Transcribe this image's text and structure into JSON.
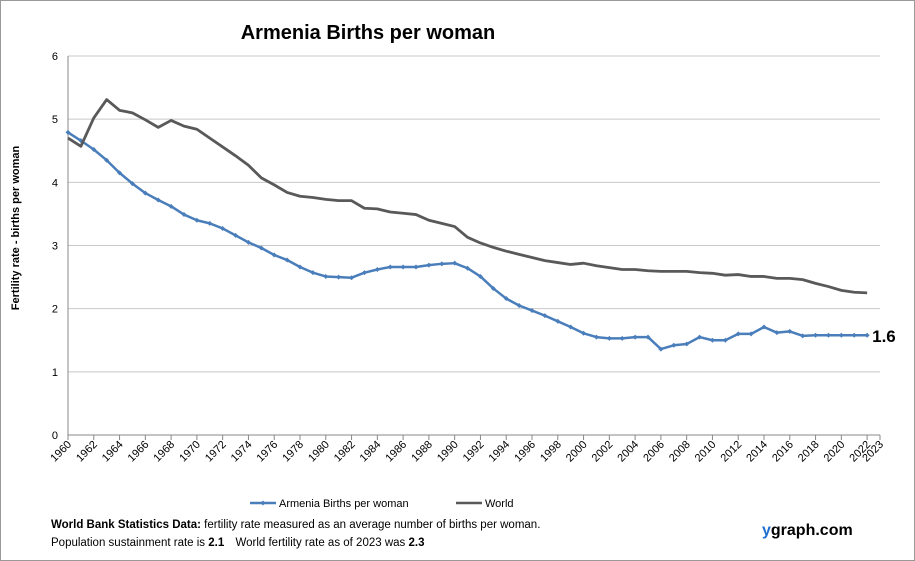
{
  "chart_data": {
    "type": "line",
    "title": "Armenia Births per woman",
    "y_label": "Fertility rate  - births per woman",
    "x": [
      1960,
      1961,
      1962,
      1963,
      1964,
      1965,
      1966,
      1967,
      1968,
      1969,
      1970,
      1971,
      1972,
      1973,
      1974,
      1975,
      1976,
      1977,
      1978,
      1979,
      1980,
      1981,
      1982,
      1983,
      1984,
      1985,
      1986,
      1987,
      1988,
      1989,
      1990,
      1991,
      1992,
      1993,
      1994,
      1995,
      1996,
      1997,
      1998,
      1999,
      2000,
      2001,
      2002,
      2003,
      2004,
      2005,
      2006,
      2007,
      2008,
      2009,
      2010,
      2011,
      2012,
      2013,
      2014,
      2015,
      2016,
      2017,
      2018,
      2019,
      2020,
      2021,
      2022
    ],
    "series": [
      {
        "name": "Armenia Births per woman",
        "color": "#4a7ebb",
        "markers": true,
        "values": [
          4.79,
          4.66,
          4.52,
          4.35,
          4.15,
          3.98,
          3.83,
          3.72,
          3.62,
          3.49,
          3.4,
          3.35,
          3.27,
          3.16,
          3.05,
          2.96,
          2.85,
          2.77,
          2.66,
          2.57,
          2.51,
          2.5,
          2.49,
          2.57,
          2.62,
          2.66,
          2.66,
          2.66,
          2.69,
          2.71,
          2.72,
          2.64,
          2.51,
          2.32,
          2.16,
          2.05,
          1.97,
          1.89,
          1.8,
          1.71,
          1.61,
          1.55,
          1.53,
          1.53,
          1.55,
          1.55,
          1.36,
          1.42,
          1.44,
          1.55,
          1.5,
          1.5,
          1.6,
          1.6,
          1.71,
          1.62,
          1.64,
          1.57,
          1.58,
          1.58,
          1.58,
          1.58,
          1.58
        ]
      },
      {
        "name": "World",
        "color": "#595959",
        "markers": false,
        "values": [
          4.7,
          4.57,
          5.02,
          5.31,
          5.14,
          5.1,
          4.99,
          4.87,
          4.98,
          4.89,
          4.84,
          4.7,
          4.56,
          4.42,
          4.27,
          4.07,
          3.96,
          3.84,
          3.78,
          3.76,
          3.73,
          3.71,
          3.71,
          3.59,
          3.58,
          3.53,
          3.51,
          3.49,
          3.4,
          3.35,
          3.3,
          3.13,
          3.04,
          2.97,
          2.91,
          2.86,
          2.81,
          2.76,
          2.73,
          2.7,
          2.72,
          2.68,
          2.65,
          2.62,
          2.62,
          2.6,
          2.59,
          2.59,
          2.59,
          2.57,
          2.56,
          2.53,
          2.54,
          2.51,
          2.51,
          2.48,
          2.48,
          2.46,
          2.4,
          2.35,
          2.29,
          2.26,
          2.25
        ]
      }
    ],
    "end_label": "1.6",
    "xlim": [
      1960,
      2023
    ],
    "xticks": [
      1960,
      1962,
      1964,
      1966,
      1968,
      1970,
      1972,
      1974,
      1976,
      1978,
      1980,
      1982,
      1984,
      1986,
      1988,
      1990,
      1992,
      1994,
      1996,
      1998,
      2000,
      2002,
      2004,
      2006,
      2008,
      2010,
      2012,
      2014,
      2016,
      2018,
      2020,
      2022,
      2023
    ],
    "ylim": [
      0,
      6
    ],
    "yticks": [
      0,
      1,
      2,
      3,
      4,
      5,
      6
    ],
    "grid": true,
    "legend": "bottom"
  },
  "footer": {
    "line1_bold": "World Bank Statistics Data:",
    "line1": "fertility rate measured as an average number  of births per woman.",
    "line2_a": "Population sustainment rate is",
    "line2_b": "2.1",
    "line2_c": "World fertility rate as of 2023 was",
    "line2_d": "2.3"
  },
  "watermark": {
    "accent": "y",
    "rest": "graph.com"
  }
}
